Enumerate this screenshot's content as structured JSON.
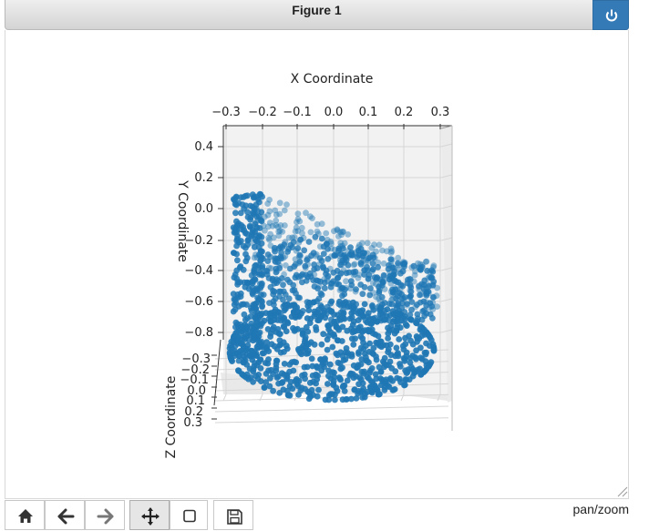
{
  "window": {
    "title": "Figure 1"
  },
  "axes": {
    "x_label": "X Coordinate",
    "y_label": "Y Coordinate",
    "z_label": "Z Coordinate",
    "x_ticks": [
      "−0.3",
      "−0.2",
      "−0.1",
      "0.0",
      "0.1",
      "0.2",
      "0.3"
    ],
    "y_ticks": [
      "0.4",
      "0.2",
      "0.0",
      "−0.2",
      "−0.4",
      "−0.6",
      "−0.8"
    ],
    "z_ticks": [
      "−0.3",
      "−0.2",
      "−0.1",
      "0.0",
      "0.1",
      "0.2",
      "0.3"
    ]
  },
  "chart_data": {
    "type": "scatter",
    "projection": "3d",
    "title": "",
    "xlabel": "X Coordinate",
    "ylabel": "Y Coordinate",
    "zlabel": "Z Coordinate",
    "xlim": [
      -0.3,
      0.3
    ],
    "ylim": [
      -0.8,
      0.4
    ],
    "zlim": [
      -0.3,
      0.3
    ],
    "marker_color": "#1f77b4",
    "grid": true,
    "description_of_shape": "point cloud of a chair-like surface: seat bowl at bottom, backrest rising to the upper left",
    "approx_point_count": 1800
  },
  "toolbar": {
    "buttons": [
      {
        "name": "home-button",
        "icon": "home-icon"
      },
      {
        "name": "back-button",
        "icon": "arrow-left-icon"
      },
      {
        "name": "forward-button",
        "icon": "arrow-right-icon"
      },
      {
        "name": "pan-button",
        "icon": "move-icon"
      },
      {
        "name": "zoom-button",
        "icon": "zoom-rect-icon"
      },
      {
        "name": "save-button",
        "icon": "floppy-icon"
      }
    ],
    "mode": "pan/zoom"
  },
  "colors": {
    "accent": "#337ab7",
    "points": "#1f77b4"
  }
}
